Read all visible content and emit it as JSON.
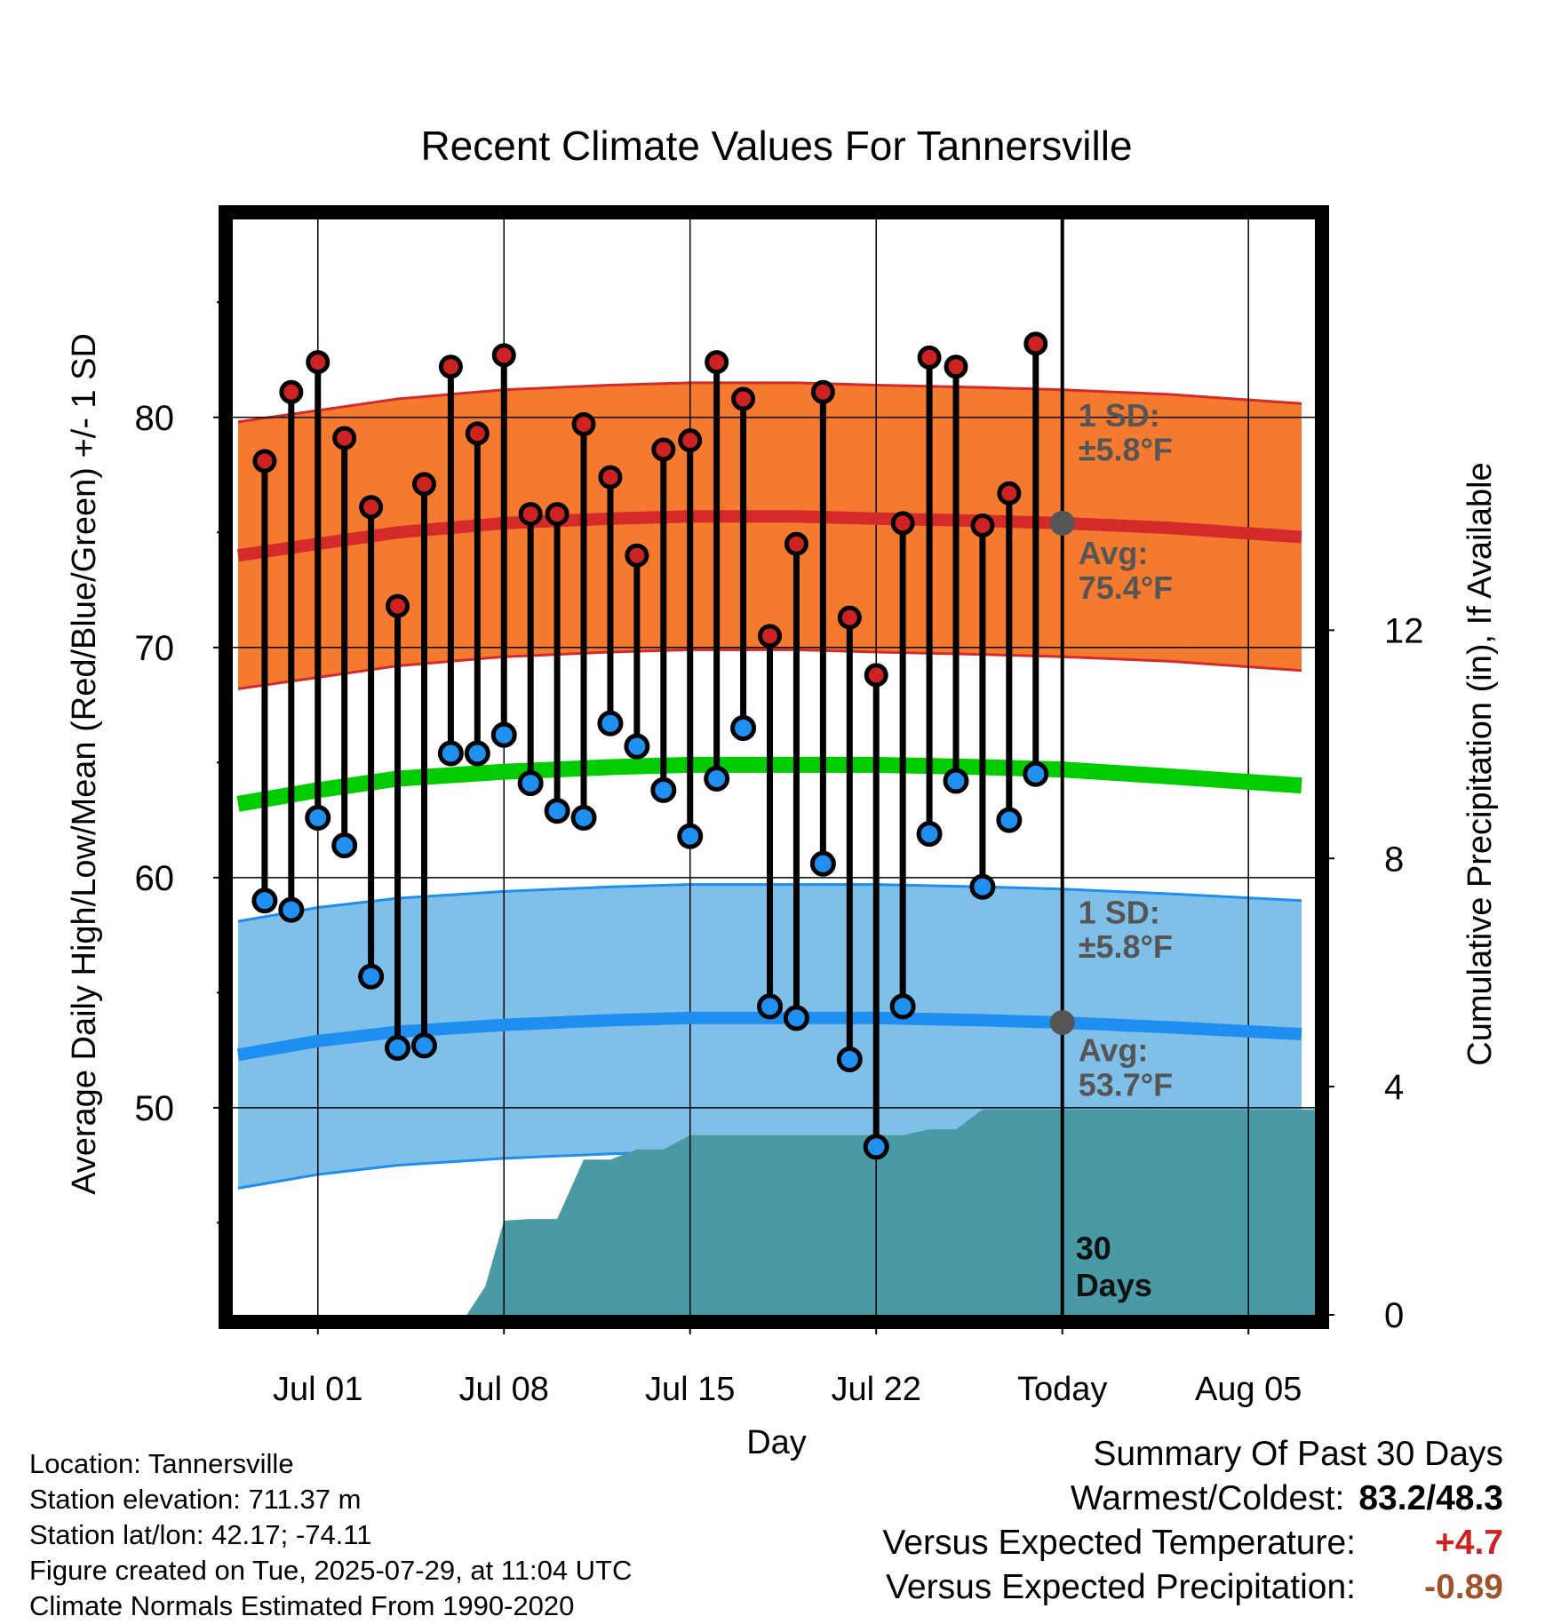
{
  "colors": {
    "high_band": "#f47a30",
    "high_line": "#d42a2a",
    "low_band": "#80c0e8",
    "low_line": "#1e8ff0",
    "mean_line": "#00cc00",
    "precip": "#4a9aa5",
    "high_dot": "#cc2222",
    "low_dot": "#2090f0",
    "annotation": "#555555",
    "warm": "#cc2222",
    "dry": "#a0522d"
  },
  "chart_data": {
    "type": "line",
    "title": "Recent Climate Values For Tannersville",
    "xlabel": "Day",
    "ylabel": "Average Daily High/Low/Mean (Red/Blue/Green) +/- 1 SD",
    "ylabel_right": "Cumulative Precipitation (in), If Available",
    "x_ticks": [
      "Jul 01",
      "Jul 08",
      "Jul 15",
      "Jul 22",
      "Today",
      "Aug 05"
    ],
    "x_tick_days": [
      3,
      10,
      17,
      24,
      31,
      38
    ],
    "xlim": [
      -0.2,
      40.5
    ],
    "ylim": [
      41.0,
      88.6
    ],
    "y_ticks": [
      50,
      60,
      70,
      80
    ],
    "y_minor_ticks": [
      45,
      55,
      65,
      75,
      85
    ],
    "y2lim": [
      0,
      19.2
    ],
    "y2_ticks": [
      0,
      4,
      8,
      12
    ],
    "grid": true,
    "days": [
      1,
      2,
      3,
      4,
      5,
      6,
      7,
      8,
      9,
      10,
      11,
      12,
      13,
      14,
      15,
      16,
      17,
      18,
      19,
      20,
      21,
      22,
      23,
      24,
      25,
      26,
      27,
      28,
      29,
      30
    ],
    "observed_high": [
      78.1,
      81.1,
      82.4,
      79.1,
      76.1,
      71.8,
      77.1,
      82.2,
      79.3,
      82.7,
      75.8,
      75.8,
      79.7,
      77.4,
      74.0,
      78.6,
      79.0,
      82.4,
      80.8,
      70.5,
      74.5,
      81.1,
      71.3,
      68.8,
      75.4,
      82.6,
      82.2,
      75.3,
      76.7,
      83.2
    ],
    "observed_low": [
      59.0,
      58.6,
      62.6,
      61.4,
      55.7,
      52.6,
      52.7,
      65.4,
      65.4,
      66.2,
      64.1,
      62.9,
      62.6,
      66.7,
      65.7,
      63.8,
      61.8,
      64.3,
      66.5,
      54.4,
      53.9,
      60.6,
      52.1,
      48.3,
      54.4,
      61.9,
      64.2,
      59.6,
      62.5,
      64.5
    ],
    "normals": {
      "days": [
        0,
        3,
        6,
        10,
        14,
        17,
        21,
        24,
        28,
        31,
        35,
        40
      ],
      "avg_high": [
        74.0,
        74.5,
        75.0,
        75.4,
        75.6,
        75.7,
        75.7,
        75.6,
        75.5,
        75.4,
        75.2,
        74.8
      ],
      "avg_low": [
        52.3,
        52.9,
        53.3,
        53.6,
        53.8,
        53.9,
        53.9,
        53.9,
        53.8,
        53.7,
        53.5,
        53.2
      ],
      "avg_mean": [
        63.2,
        63.8,
        64.3,
        64.6,
        64.8,
        64.9,
        64.9,
        64.9,
        64.8,
        64.7,
        64.4,
        64.0
      ],
      "high_sd": 5.8,
      "low_sd": 5.8
    },
    "cumulative_precip": {
      "days": [
        0,
        8.6,
        9.3,
        10.0,
        11.0,
        12.0,
        13.0,
        14.0,
        15.0,
        16.0,
        17.0,
        18.0,
        19.0,
        20.0,
        21.0,
        22.0,
        23.0,
        24.0,
        25.0,
        26.0,
        27.0,
        28.0,
        29.0,
        30.0,
        31.0,
        40.5
      ],
      "values": [
        0,
        0,
        0.5,
        1.65,
        1.68,
        1.68,
        2.72,
        2.72,
        2.9,
        2.9,
        3.15,
        3.15,
        3.15,
        3.15,
        3.15,
        3.15,
        3.15,
        3.15,
        3.15,
        3.25,
        3.25,
        3.6,
        3.6,
        3.6,
        3.6,
        3.6
      ]
    },
    "today_day": 31,
    "annotations": {
      "high_sd": "1 SD:",
      "high_sd_val": "±5.8°F",
      "high_avg": "Avg:",
      "high_avg_val": "75.4°F",
      "low_sd": "1 SD:",
      "low_sd_val": "±5.8°F",
      "low_avg": "Avg:",
      "low_avg_val": "53.7°F",
      "days_count": "30",
      "days_word": "Days"
    }
  },
  "info": {
    "location": "Location: Tannersville",
    "elevation": "Station elevation: 711.37 m",
    "latlon": "Station lat/lon: 42.17; -74.11",
    "created": "Figure created on Tue, 2025-07-29, at 11:04 UTC",
    "normals": "Climate Normals Estimated From 1990-2020"
  },
  "summary": {
    "title": "Summary Of Past 30 Days",
    "warm_cold_label": "Warmest/Coldest:",
    "warm_cold_value": "83.2/48.3",
    "temp_label": "Versus Expected Temperature:",
    "temp_value": "+4.7",
    "precip_label": "Versus Expected Precipitation:",
    "precip_value": "-0.89"
  }
}
